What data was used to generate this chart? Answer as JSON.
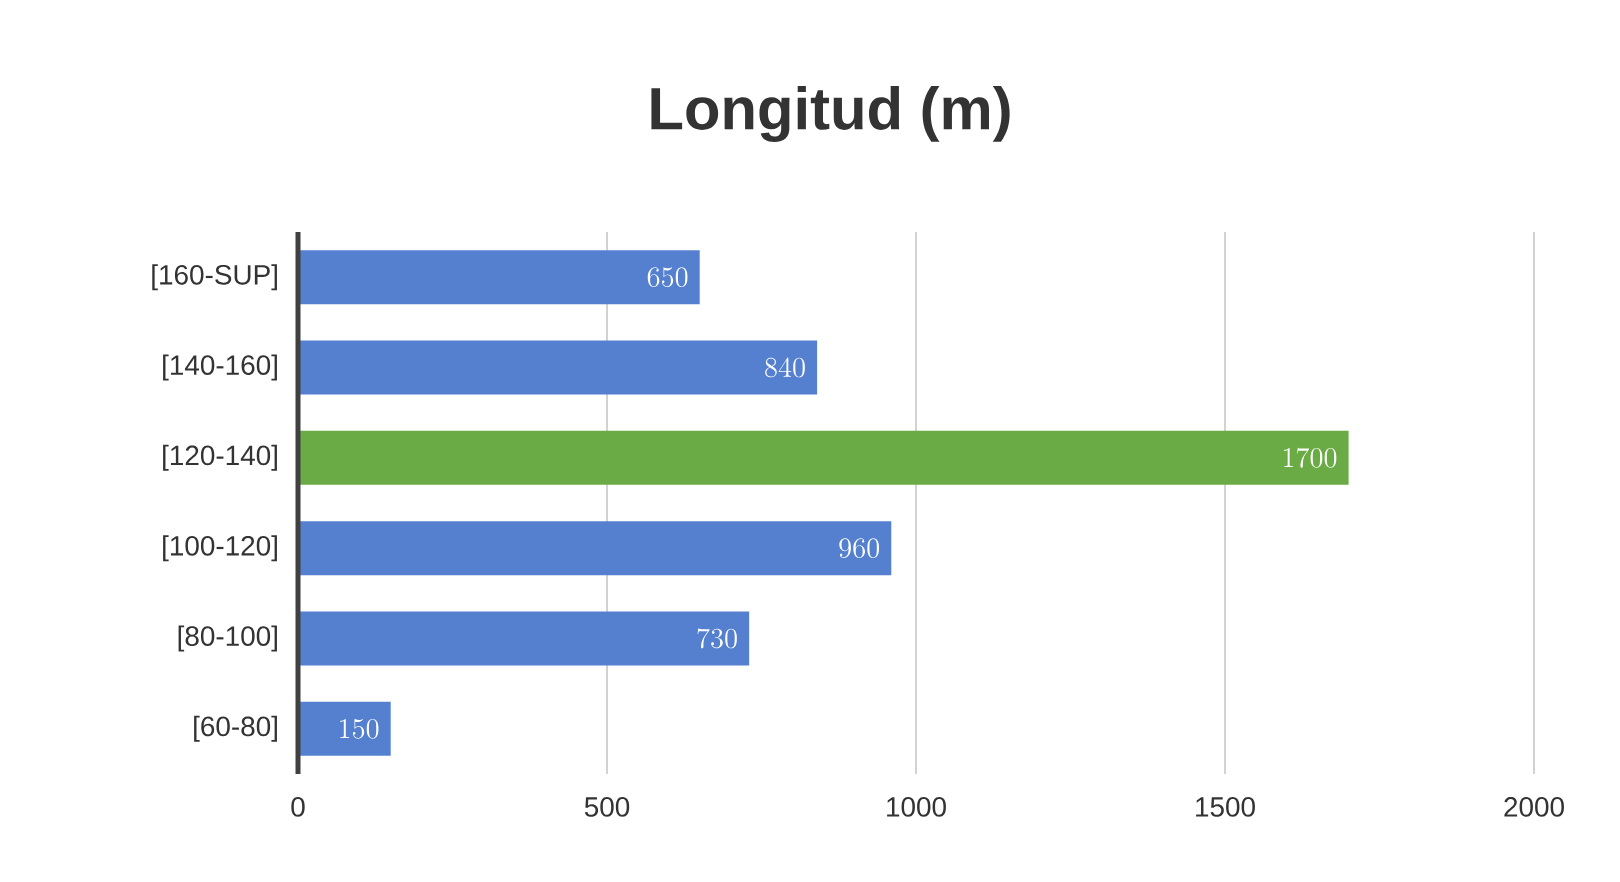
{
  "chart_data": {
    "type": "bar",
    "orientation": "horizontal",
    "title": "Longitud (m)",
    "categories": [
      "[160-SUP]",
      "[140-160]",
      "[120-140]",
      "[100-120]",
      "[80-100]",
      "[60-80]"
    ],
    "values": [
      650,
      840,
      1700,
      960,
      730,
      150
    ],
    "colors": [
      "#5580cf",
      "#5580cf",
      "#6aab45",
      "#5580cf",
      "#5580cf",
      "#5580cf"
    ],
    "xlim": [
      0,
      2000
    ],
    "xticks": [
      0,
      500,
      1000,
      1500,
      2000
    ],
    "grid": "x",
    "data_labels": true
  }
}
